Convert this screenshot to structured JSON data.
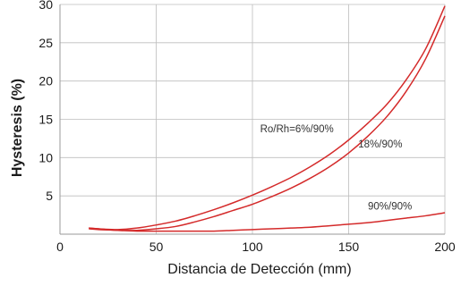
{
  "chart_data": {
    "type": "line",
    "xlabel": "Distancia de Detección (mm)",
    "ylabel": "Hysteresis (%)",
    "xlim": [
      0,
      200
    ],
    "ylim": [
      0,
      30
    ],
    "x_ticks": [
      {
        "value": 0,
        "label": "0"
      },
      {
        "value": 50,
        "label": "50"
      },
      {
        "value": 100,
        "label": "100"
      },
      {
        "value": 150,
        "label": "150"
      },
      {
        "value": 200,
        "label": "200"
      }
    ],
    "y_ticks": [
      {
        "value": 5,
        "label": "5"
      },
      {
        "value": 10,
        "label": "10"
      },
      {
        "value": 15,
        "label": "15"
      },
      {
        "value": 20,
        "label": "20"
      },
      {
        "value": 25,
        "label": "25"
      },
      {
        "value": 30,
        "label": "30"
      }
    ],
    "grid": true,
    "line_color": "#d42a2a",
    "series": [
      {
        "name": "Ro/Rh=6%/90%",
        "x": [
          15,
          20,
          30,
          40,
          50,
          60,
          70,
          80,
          90,
          100,
          110,
          120,
          130,
          140,
          150,
          160,
          170,
          180,
          190,
          200
        ],
        "y": [
          0.8,
          0.7,
          0.6,
          0.8,
          1.2,
          1.7,
          2.4,
          3.2,
          4.1,
          5.1,
          6.2,
          7.4,
          8.8,
          10.4,
          12.3,
          14.5,
          17.0,
          20.2,
          24.2,
          29.8
        ],
        "label_pos": {
          "x": 104,
          "y": 13.3
        }
      },
      {
        "name": "18%/90%",
        "x": [
          15,
          20,
          30,
          40,
          50,
          60,
          70,
          80,
          90,
          100,
          110,
          120,
          130,
          140,
          150,
          160,
          170,
          180,
          190,
          200
        ],
        "y": [
          0.8,
          0.7,
          0.5,
          0.5,
          0.7,
          1.0,
          1.6,
          2.3,
          3.1,
          3.9,
          4.9,
          6.0,
          7.3,
          8.8,
          10.6,
          12.8,
          15.4,
          18.7,
          22.9,
          28.5
        ],
        "label_pos": {
          "x": 155,
          "y": 11.3
        }
      },
      {
        "name": "90%/90%",
        "x": [
          15,
          20,
          30,
          40,
          50,
          60,
          70,
          80,
          90,
          100,
          110,
          120,
          130,
          140,
          150,
          160,
          170,
          180,
          190,
          200
        ],
        "y": [
          0.7,
          0.6,
          0.5,
          0.4,
          0.4,
          0.4,
          0.4,
          0.4,
          0.5,
          0.6,
          0.7,
          0.8,
          0.9,
          1.1,
          1.3,
          1.5,
          1.8,
          2.1,
          2.4,
          2.8
        ],
        "label_pos": {
          "x": 160,
          "y": 3.2
        }
      }
    ]
  }
}
